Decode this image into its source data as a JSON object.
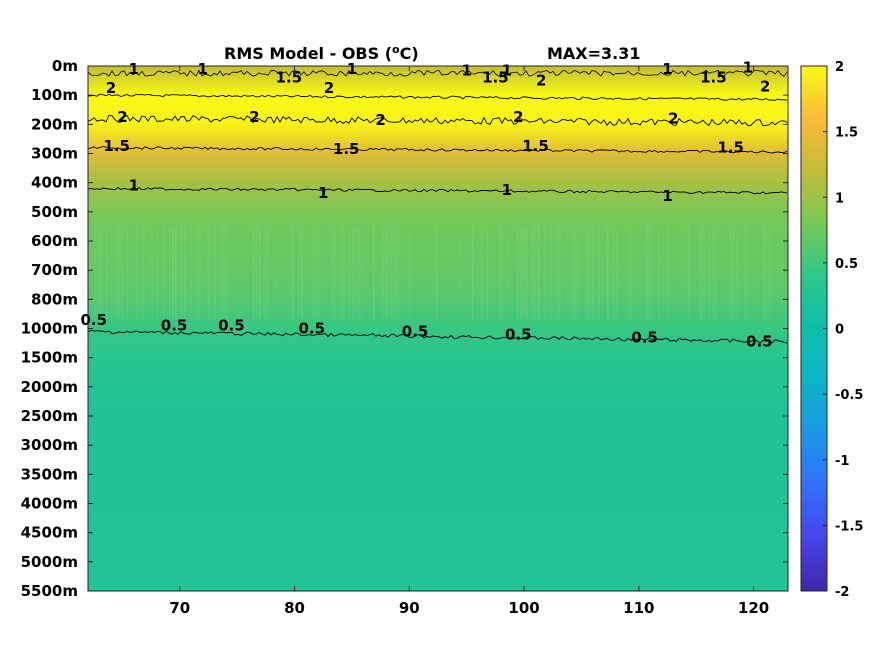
{
  "chart_data": {
    "type": "heatmap",
    "title": {
      "main": "RMS Model - OBS (",
      "unit_super": "o",
      "unit_tail": "C)",
      "max_label": "MAX=3.31"
    },
    "xlabel": "",
    "ylabel": "",
    "x_ticks": [
      70,
      80,
      90,
      100,
      110,
      120
    ],
    "xlim": [
      62,
      123
    ],
    "y_ticks": [
      "0m",
      "100m",
      "200m",
      "300m",
      "400m",
      "500m",
      "600m",
      "700m",
      "800m",
      "1000m",
      "1500m",
      "2000m",
      "2500m",
      "3000m",
      "3500m",
      "4000m",
      "4500m",
      "5000m",
      "5500m"
    ],
    "colorbar": {
      "range": [
        -2,
        2
      ],
      "ticks": [
        "2",
        "1.5",
        "1",
        "0.5",
        "0",
        "-0.5",
        "-1",
        "-1.5",
        "-2"
      ],
      "colormap": "parula"
    },
    "field_profile": [
      {
        "depth": "0m",
        "value": 1.2
      },
      {
        "depth": "100m",
        "value": 2.0
      },
      {
        "depth": "200m",
        "value": 1.95
      },
      {
        "depth": "300m",
        "value": 1.4
      },
      {
        "depth": "400m",
        "value": 1.05
      },
      {
        "depth": "500m",
        "value": 0.82
      },
      {
        "depth": "600m",
        "value": 0.72
      },
      {
        "depth": "700m",
        "value": 0.7
      },
      {
        "depth": "800m",
        "value": 0.62
      },
      {
        "depth": "1000m",
        "value": 0.45
      },
      {
        "depth": "1500m",
        "value": 0.32
      },
      {
        "depth": "2000m",
        "value": 0.27
      },
      {
        "depth": "2500m",
        "value": 0.24
      },
      {
        "depth": "3000m",
        "value": 0.23
      },
      {
        "depth": "3500m",
        "value": 0.22
      },
      {
        "depth": "4000m",
        "value": 0.24
      },
      {
        "depth": "4500m",
        "value": 0.25
      },
      {
        "depth": "5000m",
        "value": 0.25
      },
      {
        "depth": "5500m",
        "value": 0.25
      }
    ],
    "contour_lines": [
      {
        "level": 1.5,
        "depth_index": 1.0
      },
      {
        "level": 2,
        "depth_index": 1.8
      },
      {
        "level": 1.5,
        "depth_index": 2.8
      },
      {
        "level": 1,
        "depth_index": 4.2
      },
      {
        "level": 0.5,
        "depth_index": 9.1
      }
    ],
    "contour_labels": [
      {
        "text": "1",
        "x": 66,
        "depth_index": 0.1
      },
      {
        "text": "1",
        "x": 72,
        "depth_index": 0.1
      },
      {
        "text": "1",
        "x": 85,
        "depth_index": 0.1
      },
      {
        "text": "1",
        "x": 95,
        "depth_index": 0.15
      },
      {
        "text": "1",
        "x": 98.5,
        "depth_index": 0.15
      },
      {
        "text": "1",
        "x": 112.5,
        "depth_index": 0.1
      },
      {
        "text": "1",
        "x": 119.5,
        "depth_index": 0.05
      },
      {
        "text": "1.5",
        "x": 79.5,
        "depth_index": 0.4
      },
      {
        "text": "1.5",
        "x": 97.5,
        "depth_index": 0.4
      },
      {
        "text": "1.5",
        "x": 116.5,
        "depth_index": 0.4
      },
      {
        "text": "2",
        "x": 64,
        "depth_index": 0.75
      },
      {
        "text": "2",
        "x": 83,
        "depth_index": 0.75
      },
      {
        "text": "2",
        "x": 101.5,
        "depth_index": 0.5
      },
      {
        "text": "2",
        "x": 121,
        "depth_index": 0.7
      },
      {
        "text": "2",
        "x": 65,
        "depth_index": 1.75
      },
      {
        "text": "2",
        "x": 76.5,
        "depth_index": 1.75
      },
      {
        "text": "2",
        "x": 87.5,
        "depth_index": 1.85
      },
      {
        "text": "2",
        "x": 99.5,
        "depth_index": 1.75
      },
      {
        "text": "2",
        "x": 113,
        "depth_index": 1.8
      },
      {
        "text": "1.5",
        "x": 64.5,
        "depth_index": 2.75
      },
      {
        "text": "1.5",
        "x": 84.5,
        "depth_index": 2.85
      },
      {
        "text": "1.5",
        "x": 101,
        "depth_index": 2.75
      },
      {
        "text": "1.5",
        "x": 118,
        "depth_index": 2.8
      },
      {
        "text": "1",
        "x": 66,
        "depth_index": 4.1
      },
      {
        "text": "1",
        "x": 82.5,
        "depth_index": 4.35
      },
      {
        "text": "1",
        "x": 98.5,
        "depth_index": 4.25
      },
      {
        "text": "1",
        "x": 112.5,
        "depth_index": 4.45
      },
      {
        "text": "0.5",
        "x": 62.5,
        "depth_index": 8.7
      },
      {
        "text": "0.5",
        "x": 69.5,
        "depth_index": 8.9
      },
      {
        "text": "0.5",
        "x": 74.5,
        "depth_index": 8.9
      },
      {
        "text": "0.5",
        "x": 81.5,
        "depth_index": 9.0
      },
      {
        "text": "0.5",
        "x": 90.5,
        "depth_index": 9.1
      },
      {
        "text": "0.5",
        "x": 99.5,
        "depth_index": 9.2
      },
      {
        "text": "0.5",
        "x": 110.5,
        "depth_index": 9.3
      },
      {
        "text": "0.5",
        "x": 120.5,
        "depth_index": 9.45
      }
    ]
  }
}
